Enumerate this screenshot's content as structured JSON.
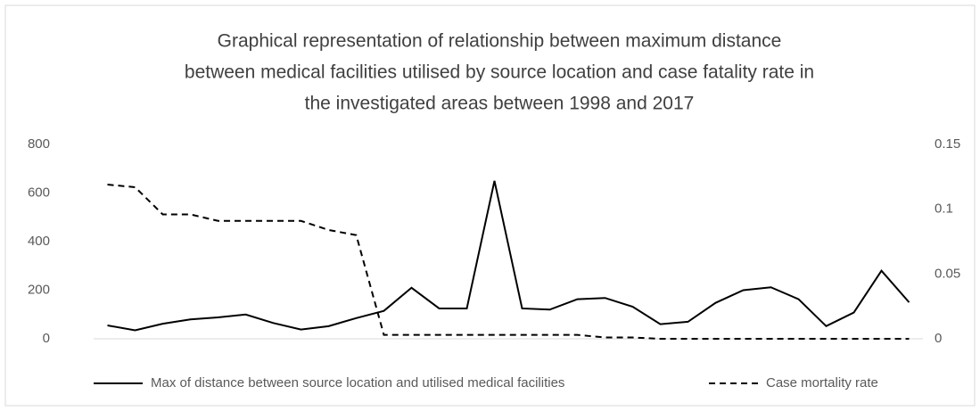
{
  "chart_data": {
    "type": "line",
    "title": [
      "Graphical representation of relationship between maximum distance",
      "between medical facilities utilised by source location and case fatality rate in",
      "the investigated areas between 1998 and 2017"
    ],
    "categories": [
      null,
      null,
      null,
      null,
      null,
      null,
      null,
      null,
      null,
      null,
      null,
      null,
      null,
      null,
      null,
      null,
      null,
      null,
      null,
      null,
      null,
      null,
      null,
      null,
      null,
      null,
      null,
      null,
      null,
      null
    ],
    "series": [
      {
        "name": "Max of distance between source location and utilised medical facilities",
        "color": "#000000",
        "dash": false,
        "values": [
          55,
          35,
          62,
          80,
          88,
          100,
          65,
          38,
          52,
          85,
          115,
          210,
          125,
          125,
          650,
          125,
          120,
          163,
          168,
          132,
          60,
          70,
          148,
          200,
          212,
          163,
          52,
          108,
          280,
          150
        ]
      },
      {
        "name": "Case mortality rate",
        "color": "#000000",
        "dash": true,
        "axis": "y2",
        "values": [
          0.119,
          0.117,
          0.096,
          0.096,
          0.091,
          0.091,
          0.091,
          0.091,
          0.084,
          0.08,
          0.003,
          0.003,
          0.003,
          0.003,
          0.003,
          0.003,
          0.003,
          0.003,
          0.001,
          0.001,
          0,
          0,
          0,
          0,
          0,
          0,
          0,
          0,
          0,
          0
        ]
      }
    ],
    "ylim": [
      0,
      800
    ],
    "yticks": [
      0,
      200,
      400,
      600,
      800
    ],
    "y2lim": [
      0,
      0.15
    ],
    "y2ticks": [
      0,
      0.05,
      0.1,
      0.15
    ],
    "legend": "bottom"
  }
}
